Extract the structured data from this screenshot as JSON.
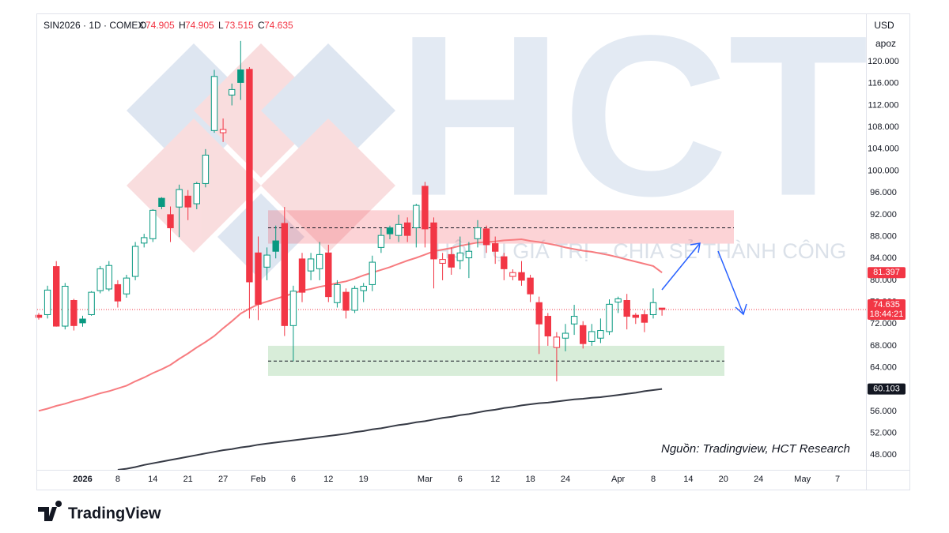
{
  "chart_data": {
    "type": "candlestick",
    "header": {
      "symbol": "SIN2026 · 1D · COMEX",
      "fields": [
        {
          "key": "O",
          "value": 74.905
        },
        {
          "key": "H",
          "value": 74.905
        },
        {
          "key": "L",
          "value": 73.515
        },
        {
          "key": "C",
          "value": 74.635
        }
      ]
    },
    "currency": "USD",
    "unit": "apoz",
    "countdown": "18:44:21",
    "source": "Nguồn: Tradingview, HCT Research",
    "brand": "TradingView",
    "watermark": "HCT",
    "slogan": "HỘI TỤ GIÁ TRỊ – CHIA SẺ THÀNH CÔNG",
    "up_color": "#089981",
    "down_color": "#f23645",
    "categories": [
      null,
      null,
      null,
      null,
      null,
      "2026",
      null,
      null,
      null,
      "8",
      null,
      null,
      null,
      "14",
      null,
      null,
      null,
      "21",
      null,
      null,
      null,
      "27",
      null,
      null,
      null,
      "Feb",
      null,
      null,
      null,
      "6",
      null,
      null,
      null,
      "12",
      null,
      null,
      null,
      "19",
      null,
      null,
      null,
      null,
      null,
      null,
      "Mar",
      null,
      null,
      null,
      "6",
      null,
      null,
      null,
      "12",
      null,
      null,
      null,
      "18",
      null,
      null,
      null,
      "24",
      null,
      null,
      null,
      null,
      null,
      "Apr",
      null,
      null,
      null,
      "8",
      null,
      null,
      null,
      "14",
      null,
      null,
      null,
      "20",
      null,
      null,
      null,
      "24",
      null,
      null,
      null,
      null,
      "May",
      null,
      null,
      null,
      "7",
      null,
      null,
      null
    ],
    "open": [
      73.6,
      73.7,
      82.5,
      71.6,
      76.3,
      72.9,
      73.7,
      78.1,
      78.4,
      79.2,
      77.5,
      80.7,
      86.8,
      87.6,
      95,
      92,
      93.4,
      95.4,
      94,
      97.7,
      107.4,
      107,
      113.9,
      118.5,
      118.6,
      85,
      82.4,
      87.2,
      90.4,
      71.7,
      83.9,
      81.7,
      82.1,
      85,
      75.9,
      77.8,
      74.5,
      78.1,
      79.2,
      86,
      89.6,
      88.2,
      90.5,
      89.6,
      97.2,
      90.5,
      83.1,
      84.7,
      83.6,
      84.1,
      87.6,
      89.4,
      86.7,
      84.3,
      80.7,
      81.4,
      80.4,
      75.9,
      73.4,
      67.7,
      69.4,
      72,
      71.7,
      68.8,
      69.4,
      70.6,
      76,
      76.3,
      73.6,
      73.7,
      73.7,
      74.905,
      null,
      null,
      null,
      null,
      null,
      null,
      null,
      null,
      null,
      null,
      null,
      null,
      null,
      null,
      null,
      null,
      null,
      null,
      null,
      null,
      null,
      null,
      null
    ],
    "high": [
      74,
      79,
      83.5,
      79.5,
      76.6,
      73.5,
      78,
      82.6,
      83.5,
      80,
      81,
      87,
      88.5,
      93,
      95.2,
      93.5,
      97.5,
      96.5,
      98,
      104,
      118.5,
      109.6,
      116,
      123.8,
      119,
      88,
      86,
      90,
      93.4,
      79,
      85,
      85,
      87,
      86.5,
      80,
      78.5,
      79,
      79.5,
      84.5,
      89.5,
      90,
      92,
      91.5,
      94,
      98,
      91.5,
      85,
      86,
      88,
      87,
      91,
      90,
      88,
      85,
      82,
      83.5,
      81,
      77,
      74,
      70.5,
      72,
      75.5,
      72.5,
      72,
      73,
      76.5,
      77,
      77.5,
      74,
      74.5,
      78.5,
      74.905,
      null,
      null,
      null,
      null,
      null,
      null,
      null,
      null,
      null,
      null,
      null,
      null,
      null,
      null,
      null,
      null,
      null,
      null,
      null,
      null,
      null,
      null,
      null
    ],
    "low": [
      72.8,
      73,
      71.5,
      71,
      70.8,
      71.5,
      73.5,
      77.6,
      78,
      75,
      76.8,
      80,
      86,
      87,
      93,
      87,
      87.9,
      91,
      93,
      97,
      107,
      105.3,
      112,
      113,
      73,
      72.7,
      80,
      84,
      69.8,
      65.2,
      76,
      80,
      80,
      76,
      75,
      73,
      74,
      76,
      78,
      85,
      87.5,
      87,
      87,
      86,
      86,
      78.5,
      80,
      81,
      82,
      80.4,
      86,
      85,
      83,
      80,
      80,
      79,
      76,
      66.5,
      68,
      61.5,
      67,
      70,
      67.5,
      68,
      68.5,
      70,
      74,
      71,
      72,
      70.5,
      73,
      73.515,
      null,
      null,
      null,
      null,
      null,
      null,
      null,
      null,
      null,
      null,
      null,
      null,
      null,
      null,
      null,
      null,
      null,
      null,
      null,
      null,
      null,
      null,
      null
    ],
    "close": [
      73.2,
      78.2,
      71.6,
      78.9,
      71.7,
      72.2,
      77.8,
      82.1,
      82.7,
      76.2,
      80.4,
      86.2,
      87.8,
      92.8,
      93.5,
      89.6,
      96.6,
      93.4,
      97.7,
      102.9,
      117.3,
      107.6,
      114.9,
      116.2,
      79.7,
      75.6,
      84.6,
      85.3,
      71.7,
      78,
      77.8,
      83.9,
      84.7,
      77,
      79.2,
      74.5,
      78.5,
      78.9,
      83.3,
      88.2,
      88.5,
      90.2,
      88.2,
      93.7,
      89.4,
      83.9,
      83.8,
      82.4,
      85,
      85.3,
      89.6,
      86.5,
      85.3,
      82.1,
      81.4,
      80,
      77.5,
      72,
      69.8,
      69.6,
      70.3,
      73.4,
      68.4,
      70.6,
      70.8,
      75.6,
      76.6,
      73.4,
      73.2,
      72.3,
      75.9,
      74.635,
      null,
      null,
      null,
      null,
      null,
      null,
      null,
      null,
      null,
      null,
      null,
      null,
      null,
      null,
      null,
      null,
      null,
      null,
      null,
      null,
      null,
      null,
      null
    ],
    "series": [
      {
        "color": "#f77c80",
        "values": [
          56.1,
          56.5,
          57.0,
          57.4,
          57.9,
          58.3,
          58.8,
          59.3,
          59.7,
          60.2,
          60.7,
          61.5,
          62.2,
          63.0,
          63.7,
          64.5,
          65.6,
          66.6,
          67.7,
          68.7,
          69.8,
          71.2,
          72.5,
          73.9,
          74.8,
          75.6,
          76.1,
          76.6,
          77.1,
          77.6,
          78.1,
          78.4,
          78.8,
          79.1,
          79.5,
          79.8,
          80.3,
          80.9,
          81.4,
          81.9,
          82.4,
          83.0,
          83.6,
          84.1,
          84.7,
          85.3,
          85.6,
          85.9,
          86.3,
          86.6,
          86.9,
          87.0,
          87.1,
          87.3,
          87.4,
          87.5,
          87.2,
          87.0,
          86.7,
          86.4,
          86.0,
          85.7,
          85.4,
          85.2,
          84.9,
          84.6,
          84.2,
          83.8,
          83.4,
          83.0,
          82.6,
          81.397,
          null,
          null,
          null,
          null,
          null,
          null,
          null,
          null,
          null,
          null,
          null,
          null,
          null,
          null,
          null,
          null,
          null,
          null,
          null,
          null,
          null,
          null,
          null
        ]
      },
      {
        "color": "#363a45",
        "values": [
          null,
          null,
          null,
          null,
          null,
          null,
          null,
          null,
          null,
          45.3,
          45.5,
          45.8,
          46.2,
          46.5,
          46.8,
          47.1,
          47.4,
          47.7,
          48.0,
          48.3,
          48.6,
          48.9,
          49.1,
          49.4,
          49.6,
          49.9,
          50.1,
          50.3,
          50.5,
          50.7,
          50.9,
          51.1,
          51.3,
          51.5,
          51.7,
          51.9,
          52.2,
          52.4,
          52.7,
          52.9,
          53.2,
          53.5,
          53.7,
          54.0,
          54.2,
          54.5,
          54.8,
          55.0,
          55.3,
          55.5,
          55.8,
          56.1,
          56.3,
          56.6,
          56.8,
          57.1,
          57.3,
          57.5,
          57.6,
          57.8,
          58.0,
          58.2,
          58.3,
          58.5,
          58.6,
          58.8,
          59.0,
          59.2,
          59.4,
          59.7,
          59.9,
          60.103,
          null,
          null,
          null,
          null,
          null,
          null,
          null,
          null,
          null,
          null,
          null,
          null,
          null,
          null,
          null,
          null,
          null,
          null,
          null,
          null,
          null,
          null,
          null
        ]
      }
    ],
    "zones": [
      {
        "low": 86.7,
        "high": 92.8,
        "level": 89.6,
        "color": "#f23645"
      },
      {
        "low": 62.5,
        "high": 68,
        "level": 65.2,
        "color": "#4caf50"
      }
    ],
    "ylim": [
      45.3,
      128.4
    ],
    "yticks": [
      {
        "value": 48,
        "label": "48.000"
      },
      {
        "value": 52,
        "label": "52.000"
      },
      {
        "value": 56,
        "label": "56.000"
      },
      {
        "value": 60,
        "label": "60.000"
      },
      {
        "value": 64,
        "label": "64.000"
      },
      {
        "value": 68,
        "label": "68.000"
      },
      {
        "value": 72,
        "label": "72.000"
      },
      {
        "value": 76,
        "label": "76.000"
      },
      {
        "value": 80,
        "label": "80.000"
      },
      {
        "value": 84,
        "label": "84.000"
      },
      {
        "value": 88,
        "label": "88.000"
      },
      {
        "value": 92,
        "label": "92.000"
      },
      {
        "value": 96,
        "label": "96.000"
      },
      {
        "value": 100,
        "label": "100.000"
      },
      {
        "value": 104,
        "label": "104.000"
      },
      {
        "value": 108,
        "label": "108.000"
      },
      {
        "value": 112,
        "label": "112.000"
      },
      {
        "value": 116,
        "label": "116.000"
      },
      {
        "value": 120,
        "label": "120.000"
      }
    ],
    "grid": false
  }
}
